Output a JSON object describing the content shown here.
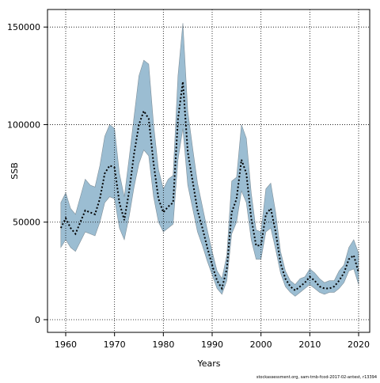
{
  "chart_data": {
    "type": "band-line",
    "xlabel": "Years",
    "ylabel": "SSB",
    "footnote": "stockassessment.org, sam-tmb-fcod-2017-02-antest, r13394",
    "x": [
      1959,
      1960,
      1961,
      1962,
      1963,
      1964,
      1965,
      1966,
      1967,
      1968,
      1969,
      1970,
      1971,
      1972,
      1973,
      1974,
      1975,
      1976,
      1977,
      1978,
      1979,
      1980,
      1981,
      1982,
      1983,
      1984,
      1985,
      1986,
      1987,
      1988,
      1989,
      1990,
      1991,
      1992,
      1993,
      1994,
      1995,
      1996,
      1997,
      1998,
      1999,
      2000,
      2001,
      2002,
      2003,
      2004,
      2005,
      2006,
      2007,
      2008,
      2009,
      2010,
      2011,
      2012,
      2013,
      2014,
      2015,
      2016,
      2017,
      2018,
      2019,
      2020
    ],
    "series": [
      {
        "name": "SSB",
        "color": "#000000",
        "values": [
          47000,
          52000,
          47000,
          44000,
          50000,
          56000,
          55000,
          54000,
          62000,
          75000,
          79000,
          78000,
          60000,
          51000,
          66000,
          85000,
          100000,
          107000,
          103000,
          80000,
          62000,
          55000,
          58000,
          60000,
          103000,
          122000,
          86000,
          71000,
          56000,
          47000,
          37000,
          28000,
          20000,
          16000,
          26000,
          55000,
          62000,
          82000,
          75000,
          52000,
          38000,
          38000,
          54000,
          57000,
          45000,
          29000,
          21000,
          17000,
          15000,
          17000,
          19000,
          22000,
          20000,
          17000,
          16000,
          16000,
          17000,
          20000,
          24000,
          31000,
          33000,
          24000
        ]
      }
    ],
    "band": {
      "color": "#9bbdd2",
      "lower": [
        37000,
        41000,
        37000,
        35000,
        40000,
        45000,
        44000,
        43000,
        50000,
        60000,
        63000,
        62000,
        47000,
        41000,
        53000,
        68000,
        80000,
        87000,
        84000,
        63000,
        50000,
        45000,
        47000,
        49000,
        82000,
        98000,
        69000,
        57000,
        45000,
        38000,
        30000,
        23000,
        16000,
        13000,
        20000,
        44000,
        50000,
        66000,
        60000,
        41000,
        31000,
        31000,
        45000,
        47000,
        36000,
        24000,
        17000,
        14000,
        12000,
        14000,
        16000,
        18000,
        16000,
        14000,
        13000,
        14000,
        14000,
        16000,
        19000,
        25000,
        26000,
        18000
      ],
      "upper": [
        60000,
        65000,
        57000,
        54000,
        63000,
        72000,
        69000,
        68000,
        79000,
        94000,
        100000,
        98000,
        75000,
        63000,
        83000,
        104000,
        125000,
        133000,
        131000,
        100000,
        77000,
        67000,
        72000,
        74000,
        125000,
        152000,
        107000,
        88000,
        70000,
        58000,
        46000,
        35000,
        25000,
        21000,
        33000,
        71000,
        73000,
        100000,
        93000,
        65000,
        46000,
        45000,
        67000,
        70000,
        55000,
        35000,
        25000,
        20000,
        18000,
        21000,
        22000,
        26000,
        24000,
        21000,
        19000,
        20000,
        20000,
        25000,
        28000,
        37000,
        41000,
        34000
      ]
    },
    "xlim": [
      1956.27,
      2022.27
    ],
    "ylim": [
      -6500,
      159000
    ],
    "xticks": [
      1960,
      1970,
      1980,
      1990,
      2000,
      2010,
      2020
    ],
    "yticks": [
      0,
      50000,
      100000,
      150000
    ],
    "grid": true
  }
}
